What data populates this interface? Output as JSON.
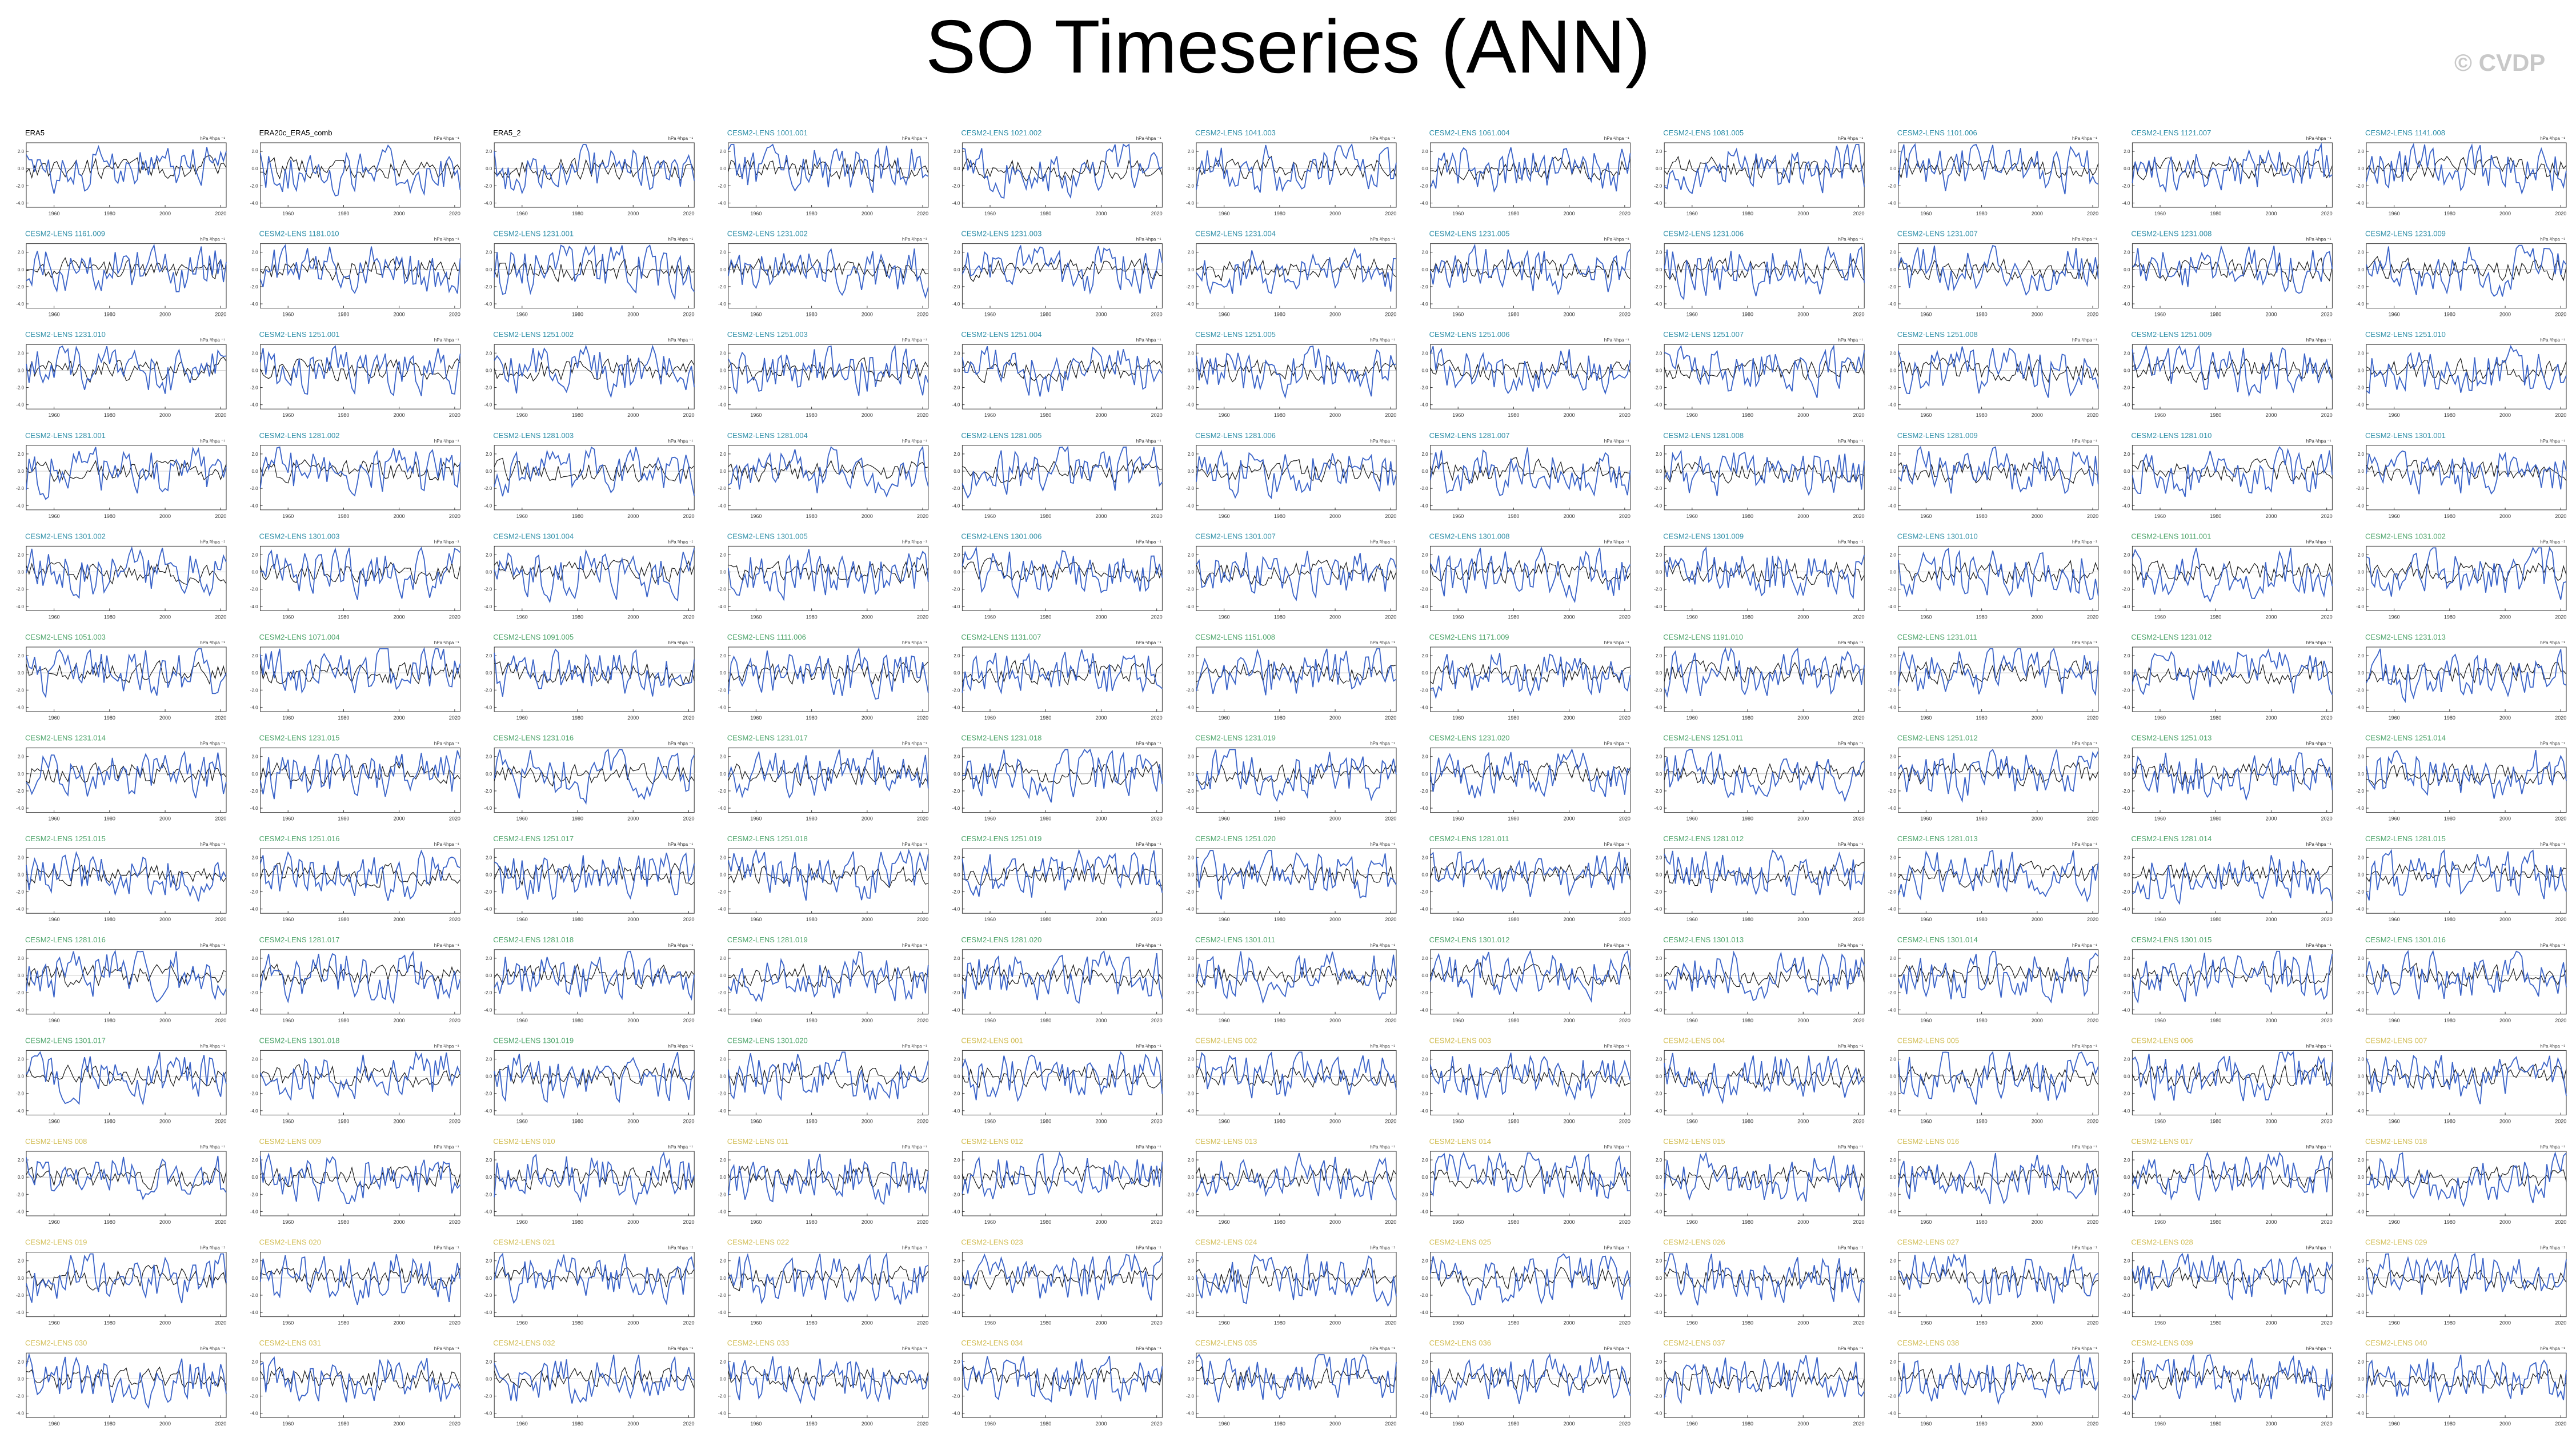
{
  "title": "SO Timeseries (ANN)",
  "watermark": "© CVDP",
  "colors": {
    "observed": "#1b1b1b",
    "model": "#3a63c8",
    "label_obs": "#000000",
    "label_cesm_a": "#2f8fa8",
    "label_cesm_b": "#4da46a",
    "label_cesm_c": "#d2be56",
    "axis": "#333333"
  },
  "chart_data": {
    "type": "line",
    "layout": "small-multiples",
    "columns": 11,
    "rows": 13,
    "units_label": "hPa ²/hpa ⁻¹",
    "x_ticks": [
      "1960",
      "1980",
      "2000",
      "2020"
    ],
    "x_range": [
      1950,
      2022
    ],
    "y_ticks": [
      2.0,
      0.0,
      -2.0,
      -4.0
    ],
    "y_range": [
      -4.5,
      3.0
    ],
    "panels": [
      {
        "label": "ERA5",
        "color": "label_obs"
      },
      {
        "label": "ERA20c_ERA5_comb",
        "color": "label_obs"
      },
      {
        "label": "ERA5_2",
        "color": "label_obs"
      },
      {
        "label": "CESM2-LENS 1001.001",
        "color": "label_cesm_a"
      },
      {
        "label": "CESM2-LENS 1021.002",
        "color": "label_cesm_a"
      },
      {
        "label": "CESM2-LENS 1041.003",
        "color": "label_cesm_a"
      },
      {
        "label": "CESM2-LENS 1061.004",
        "color": "label_cesm_a"
      },
      {
        "label": "CESM2-LENS 1081.005",
        "color": "label_cesm_a"
      },
      {
        "label": "CESM2-LENS 1101.006",
        "color": "label_cesm_a"
      },
      {
        "label": "CESM2-LENS 1121.007",
        "color": "label_cesm_a"
      },
      {
        "label": "CESM2-LENS 1141.008",
        "color": "label_cesm_a"
      },
      {
        "label": "CESM2-LENS 1161.009",
        "color": "label_cesm_a"
      },
      {
        "label": "CESM2-LENS 1181.010",
        "color": "label_cesm_a"
      },
      {
        "label": "CESM2-LENS 1231.001",
        "color": "label_cesm_a"
      },
      {
        "label": "CESM2-LENS 1231.002",
        "color": "label_cesm_a"
      },
      {
        "label": "CESM2-LENS 1231.003",
        "color": "label_cesm_a"
      },
      {
        "label": "CESM2-LENS 1231.004",
        "color": "label_cesm_a"
      },
      {
        "label": "CESM2-LENS 1231.005",
        "color": "label_cesm_a"
      },
      {
        "label": "CESM2-LENS 1231.006",
        "color": "label_cesm_a"
      },
      {
        "label": "CESM2-LENS 1231.007",
        "color": "label_cesm_a"
      },
      {
        "label": "CESM2-LENS 1231.008",
        "color": "label_cesm_a"
      },
      {
        "label": "CESM2-LENS 1231.009",
        "color": "label_cesm_a"
      },
      {
        "label": "CESM2-LENS 1231.010",
        "color": "label_cesm_a"
      },
      {
        "label": "CESM2-LENS 1251.001",
        "color": "label_cesm_a"
      },
      {
        "label": "CESM2-LENS 1251.002",
        "color": "label_cesm_a"
      },
      {
        "label": "CESM2-LENS 1251.003",
        "color": "label_cesm_a"
      },
      {
        "label": "CESM2-LENS 1251.004",
        "color": "label_cesm_a"
      },
      {
        "label": "CESM2-LENS 1251.005",
        "color": "label_cesm_a"
      },
      {
        "label": "CESM2-LENS 1251.006",
        "color": "label_cesm_a"
      },
      {
        "label": "CESM2-LENS 1251.007",
        "color": "label_cesm_a"
      },
      {
        "label": "CESM2-LENS 1251.008",
        "color": "label_cesm_a"
      },
      {
        "label": "CESM2-LENS 1251.009",
        "color": "label_cesm_a"
      },
      {
        "label": "CESM2-LENS 1251.010",
        "color": "label_cesm_a"
      },
      {
        "label": "CESM2-LENS 1281.001",
        "color": "label_cesm_a"
      },
      {
        "label": "CESM2-LENS 1281.002",
        "color": "label_cesm_a"
      },
      {
        "label": "CESM2-LENS 1281.003",
        "color": "label_cesm_a"
      },
      {
        "label": "CESM2-LENS 1281.004",
        "color": "label_cesm_a"
      },
      {
        "label": "CESM2-LENS 1281.005",
        "color": "label_cesm_a"
      },
      {
        "label": "CESM2-LENS 1281.006",
        "color": "label_cesm_a"
      },
      {
        "label": "CESM2-LENS 1281.007",
        "color": "label_cesm_a"
      },
      {
        "label": "CESM2-LENS 1281.008",
        "color": "label_cesm_a"
      },
      {
        "label": "CESM2-LENS 1281.009",
        "color": "label_cesm_a"
      },
      {
        "label": "CESM2-LENS 1281.010",
        "color": "label_cesm_a"
      },
      {
        "label": "CESM2-LENS 1301.001",
        "color": "label_cesm_a"
      },
      {
        "label": "CESM2-LENS 1301.002",
        "color": "label_cesm_a"
      },
      {
        "label": "CESM2-LENS 1301.003",
        "color": "label_cesm_a"
      },
      {
        "label": "CESM2-LENS 1301.004",
        "color": "label_cesm_a"
      },
      {
        "label": "CESM2-LENS 1301.005",
        "color": "label_cesm_a"
      },
      {
        "label": "CESM2-LENS 1301.006",
        "color": "label_cesm_a"
      },
      {
        "label": "CESM2-LENS 1301.007",
        "color": "label_cesm_a"
      },
      {
        "label": "CESM2-LENS 1301.008",
        "color": "label_cesm_a"
      },
      {
        "label": "CESM2-LENS 1301.009",
        "color": "label_cesm_a"
      },
      {
        "label": "CESM2-LENS 1301.010",
        "color": "label_cesm_a"
      },
      {
        "label": "CESM2-LENS 1011.001",
        "color": "label_cesm_b"
      },
      {
        "label": "CESM2-LENS 1031.002",
        "color": "label_cesm_b"
      },
      {
        "label": "CESM2-LENS 1051.003",
        "color": "label_cesm_b"
      },
      {
        "label": "CESM2-LENS 1071.004",
        "color": "label_cesm_b"
      },
      {
        "label": "CESM2-LENS 1091.005",
        "color": "label_cesm_b"
      },
      {
        "label": "CESM2-LENS 1111.006",
        "color": "label_cesm_b"
      },
      {
        "label": "CESM2-LENS 1131.007",
        "color": "label_cesm_b"
      },
      {
        "label": "CESM2-LENS 1151.008",
        "color": "label_cesm_b"
      },
      {
        "label": "CESM2-LENS 1171.009",
        "color": "label_cesm_b"
      },
      {
        "label": "CESM2-LENS 1191.010",
        "color": "label_cesm_b"
      },
      {
        "label": "CESM2-LENS 1231.011",
        "color": "label_cesm_b"
      },
      {
        "label": "CESM2-LENS 1231.012",
        "color": "label_cesm_b"
      },
      {
        "label": "CESM2-LENS 1231.013",
        "color": "label_cesm_b"
      },
      {
        "label": "CESM2-LENS 1231.014",
        "color": "label_cesm_b"
      },
      {
        "label": "CESM2-LENS 1231.015",
        "color": "label_cesm_b"
      },
      {
        "label": "CESM2-LENS 1231.016",
        "color": "label_cesm_b"
      },
      {
        "label": "CESM2-LENS 1231.017",
        "color": "label_cesm_b"
      },
      {
        "label": "CESM2-LENS 1231.018",
        "color": "label_cesm_b"
      },
      {
        "label": "CESM2-LENS 1231.019",
        "color": "label_cesm_b"
      },
      {
        "label": "CESM2-LENS 1231.020",
        "color": "label_cesm_b"
      },
      {
        "label": "CESM2-LENS 1251.011",
        "color": "label_cesm_b"
      },
      {
        "label": "CESM2-LENS 1251.012",
        "color": "label_cesm_b"
      },
      {
        "label": "CESM2-LENS 1251.013",
        "color": "label_cesm_b"
      },
      {
        "label": "CESM2-LENS 1251.014",
        "color": "label_cesm_b"
      },
      {
        "label": "CESM2-LENS 1251.015",
        "color": "label_cesm_b"
      },
      {
        "label": "CESM2-LENS 1251.016",
        "color": "label_cesm_b"
      },
      {
        "label": "CESM2-LENS 1251.017",
        "color": "label_cesm_b"
      },
      {
        "label": "CESM2-LENS 1251.018",
        "color": "label_cesm_b"
      },
      {
        "label": "CESM2-LENS 1251.019",
        "color": "label_cesm_b"
      },
      {
        "label": "CESM2-LENS 1251.020",
        "color": "label_cesm_b"
      },
      {
        "label": "CESM2-LENS 1281.011",
        "color": "label_cesm_b"
      },
      {
        "label": "CESM2-LENS 1281.012",
        "color": "label_cesm_b"
      },
      {
        "label": "CESM2-LENS 1281.013",
        "color": "label_cesm_b"
      },
      {
        "label": "CESM2-LENS 1281.014",
        "color": "label_cesm_b"
      },
      {
        "label": "CESM2-LENS 1281.015",
        "color": "label_cesm_b"
      },
      {
        "label": "CESM2-LENS 1281.016",
        "color": "label_cesm_b"
      },
      {
        "label": "CESM2-LENS 1281.017",
        "color": "label_cesm_b"
      },
      {
        "label": "CESM2-LENS 1281.018",
        "color": "label_cesm_b"
      },
      {
        "label": "CESM2-LENS 1281.019",
        "color": "label_cesm_b"
      },
      {
        "label": "CESM2-LENS 1281.020",
        "color": "label_cesm_b"
      },
      {
        "label": "CESM2-LENS 1301.011",
        "color": "label_cesm_b"
      },
      {
        "label": "CESM2-LENS 1301.012",
        "color": "label_cesm_b"
      },
      {
        "label": "CESM2-LENS 1301.013",
        "color": "label_cesm_b"
      },
      {
        "label": "CESM2-LENS 1301.014",
        "color": "label_cesm_b"
      },
      {
        "label": "CESM2-LENS 1301.015",
        "color": "label_cesm_b"
      },
      {
        "label": "CESM2-LENS 1301.016",
        "color": "label_cesm_b"
      },
      {
        "label": "CESM2-LENS 1301.017",
        "color": "label_cesm_b"
      },
      {
        "label": "CESM2-LENS 1301.018",
        "color": "label_cesm_b"
      },
      {
        "label": "CESM2-LENS 1301.019",
        "color": "label_cesm_b"
      },
      {
        "label": "CESM2-LENS 1301.020",
        "color": "label_cesm_b"
      },
      {
        "label": "CESM2-LENS 001",
        "color": "label_cesm_c"
      },
      {
        "label": "CESM2-LENS 002",
        "color": "label_cesm_c"
      },
      {
        "label": "CESM2-LENS 003",
        "color": "label_cesm_c"
      },
      {
        "label": "CESM2-LENS 004",
        "color": "label_cesm_c"
      },
      {
        "label": "CESM2-LENS 005",
        "color": "label_cesm_c"
      },
      {
        "label": "CESM2-LENS 006",
        "color": "label_cesm_c"
      },
      {
        "label": "CESM2-LENS 007",
        "color": "label_cesm_c"
      },
      {
        "label": "CESM2-LENS 008",
        "color": "label_cesm_c"
      },
      {
        "label": "CESM2-LENS 009",
        "color": "label_cesm_c"
      },
      {
        "label": "CESM2-LENS 010",
        "color": "label_cesm_c"
      },
      {
        "label": "CESM2-LENS 011",
        "color": "label_cesm_c"
      },
      {
        "label": "CESM2-LENS 012",
        "color": "label_cesm_c"
      },
      {
        "label": "CESM2-LENS 013",
        "color": "label_cesm_c"
      },
      {
        "label": "CESM2-LENS 014",
        "color": "label_cesm_c"
      },
      {
        "label": "CESM2-LENS 015",
        "color": "label_cesm_c"
      },
      {
        "label": "CESM2-LENS 016",
        "color": "label_cesm_c"
      },
      {
        "label": "CESM2-LENS 017",
        "color": "label_cesm_c"
      },
      {
        "label": "CESM2-LENS 018",
        "color": "label_cesm_c"
      },
      {
        "label": "CESM2-LENS 019",
        "color": "label_cesm_c"
      },
      {
        "label": "CESM2-LENS 020",
        "color": "label_cesm_c"
      },
      {
        "label": "CESM2-LENS 021",
        "color": "label_cesm_c"
      },
      {
        "label": "CESM2-LENS 022",
        "color": "label_cesm_c"
      },
      {
        "label": "CESM2-LENS 023",
        "color": "label_cesm_c"
      },
      {
        "label": "CESM2-LENS 024",
        "color": "label_cesm_c"
      },
      {
        "label": "CESM2-LENS 025",
        "color": "label_cesm_c"
      },
      {
        "label": "CESM2-LENS 026",
        "color": "label_cesm_c"
      },
      {
        "label": "CESM2-LENS 027",
        "color": "label_cesm_c"
      },
      {
        "label": "CESM2-LENS 028",
        "color": "label_cesm_c"
      },
      {
        "label": "CESM2-LENS 029",
        "color": "label_cesm_c"
      },
      {
        "label": "CESM2-LENS 030",
        "color": "label_cesm_c"
      },
      {
        "label": "CESM2-LENS 031",
        "color": "label_cesm_c"
      },
      {
        "label": "CESM2-LENS 032",
        "color": "label_cesm_c"
      },
      {
        "label": "CESM2-LENS 033",
        "color": "label_cesm_c"
      },
      {
        "label": "CESM2-LENS 034",
        "color": "label_cesm_c"
      },
      {
        "label": "CESM2-LENS 035",
        "color": "label_cesm_c"
      },
      {
        "label": "CESM2-LENS 036",
        "color": "label_cesm_c"
      },
      {
        "label": "CESM2-LENS 037",
        "color": "label_cesm_c"
      },
      {
        "label": "CESM2-LENS 038",
        "color": "label_cesm_c"
      },
      {
        "label": "CESM2-LENS 039",
        "color": "label_cesm_c"
      },
      {
        "label": "CESM2-LENS 040",
        "color": "label_cesm_c"
      }
    ]
  }
}
